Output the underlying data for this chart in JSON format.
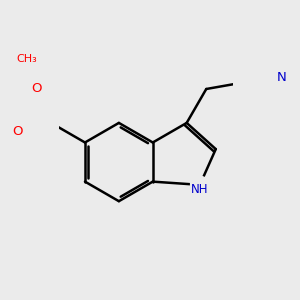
{
  "background_color": "#ebebeb",
  "bond_color": "#000000",
  "bond_lw": 1.8,
  "atom_colors": {
    "O": "#ff0000",
    "N": "#0000cc"
  },
  "figsize": [
    3.0,
    3.0
  ],
  "dpi": 100,
  "xlim": [
    -1.6,
    1.6
  ],
  "ylim": [
    -1.6,
    1.6
  ],
  "scale": 0.72
}
